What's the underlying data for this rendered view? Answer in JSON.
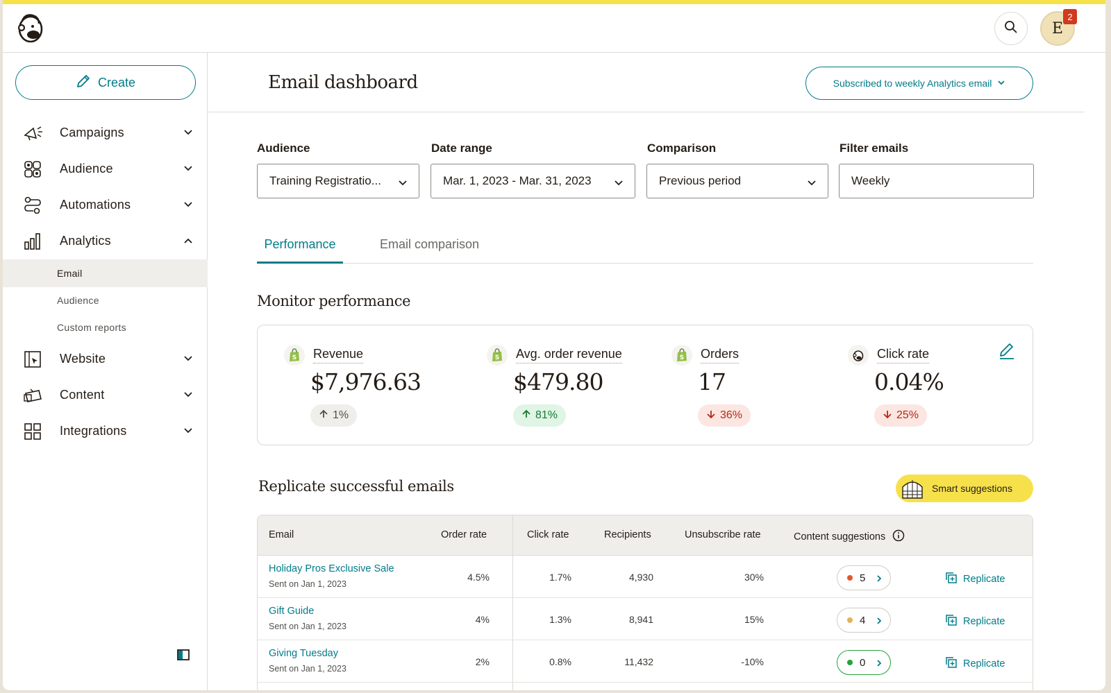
{
  "app": {
    "avatar_initial": "E",
    "notification_count": "2",
    "accent_color": "#007c89",
    "brand_yellow": "#f7e14b"
  },
  "sidebar": {
    "create_label": "Create",
    "items": [
      {
        "label": "Campaigns",
        "icon": "megaphone-icon",
        "expanded": false
      },
      {
        "label": "Audience",
        "icon": "audience-icon",
        "expanded": false
      },
      {
        "label": "Automations",
        "icon": "automations-icon",
        "expanded": false
      },
      {
        "label": "Analytics",
        "icon": "bar-chart-icon",
        "expanded": true
      },
      {
        "label": "Website",
        "icon": "website-icon",
        "expanded": false
      },
      {
        "label": "Content",
        "icon": "content-icon",
        "expanded": false
      },
      {
        "label": "Integrations",
        "icon": "grid-icon",
        "expanded": false
      }
    ],
    "analytics_sub": [
      "Email",
      "Audience",
      "Custom reports"
    ],
    "active_sub": "Email"
  },
  "header": {
    "title": "Email dashboard",
    "subscribe_label": "Subscribed to weekly Analytics email"
  },
  "filters": {
    "audience": {
      "label": "Audience",
      "value": "Training Registratio..."
    },
    "date_range": {
      "label": "Date range",
      "value": "Mar. 1, 2023 - Mar. 31, 2023"
    },
    "comparison": {
      "label": "Comparison",
      "value": "Previous period"
    },
    "filter_emails": {
      "label": "Filter emails",
      "value": "Weekly"
    }
  },
  "tabs": [
    {
      "label": "Performance",
      "active": true
    },
    {
      "label": "Email comparison",
      "active": false
    }
  ],
  "monitor": {
    "title": "Monitor performance",
    "metrics": [
      {
        "label": "Revenue",
        "value": "$7,976.63",
        "delta": "1%",
        "direction": "neutral",
        "icon": "shopify-icon"
      },
      {
        "label": "Avg. order revenue",
        "value": "$479.80",
        "delta": "81%",
        "direction": "up",
        "icon": "shopify-icon"
      },
      {
        "label": "Orders",
        "value": "17",
        "delta": "36%",
        "direction": "down",
        "icon": "shopify-icon"
      },
      {
        "label": "Click rate",
        "value": "0.04%",
        "delta": "25%",
        "direction": "down",
        "icon": "mailchimp-icon"
      }
    ]
  },
  "replicate": {
    "title": "Replicate successful emails",
    "smart_label": "Smart suggestions",
    "columns": [
      "Email",
      "Order rate",
      "Click rate",
      "Recipients",
      "Unsubscribe rate",
      "Content suggestions"
    ],
    "rows": [
      {
        "name": "Holiday Pros Exclusive Sale",
        "sent": "Sent on Jan 1, 2023",
        "order_rate": "4.5%",
        "click_rate": "1.7%",
        "recipients": "4,930",
        "unsub": "30%",
        "suggestions": "5",
        "dot_color": "#e4572e",
        "action": "Replicate"
      },
      {
        "name": "Gift Guide",
        "sent": "Sent on Jan 1, 2023",
        "order_rate": "4%",
        "click_rate": "1.3%",
        "recipients": "8,941",
        "unsub": "15%",
        "suggestions": "4",
        "dot_color": "#e3b25a",
        "action": "Replicate"
      },
      {
        "name": "Giving Tuesday",
        "sent": "Sent on Jan 1, 2023",
        "order_rate": "2%",
        "click_rate": "0.8%",
        "recipients": "11,432",
        "unsub": "-10%",
        "suggestions": "0",
        "dot_color": "#22a33d",
        "action": "Replicate"
      }
    ]
  }
}
